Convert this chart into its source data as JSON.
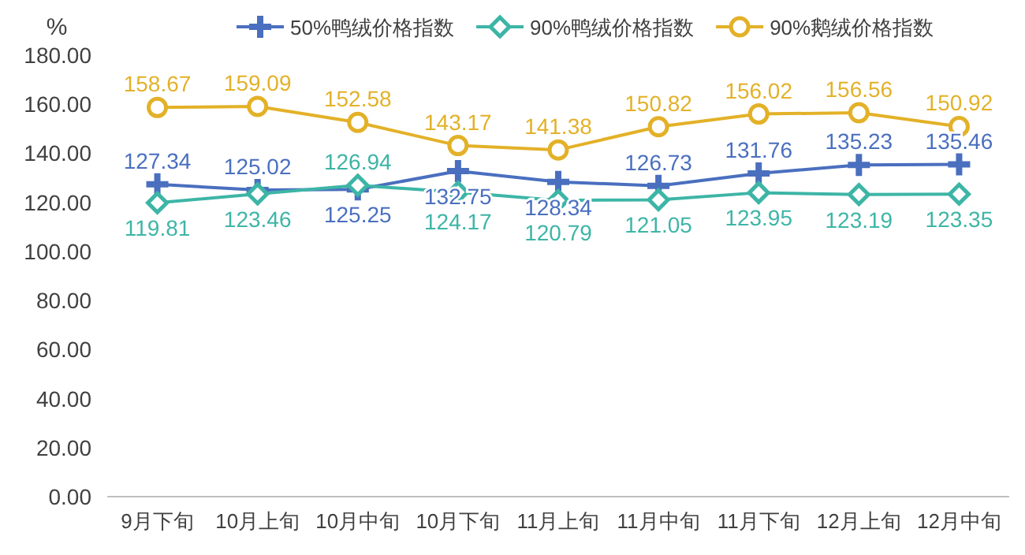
{
  "chart_data": {
    "type": "line",
    "ylabel": "%",
    "categories": [
      "9月下旬",
      "10月上旬",
      "10月中旬",
      "10月下旬",
      "11月上旬",
      "11月中旬",
      "11月下旬",
      "12月上旬",
      "12月中旬"
    ],
    "series": [
      {
        "name": "50%鸭绒价格指数",
        "color": "#4a6fbf",
        "marker": "cross",
        "values": [
          127.34,
          125.02,
          125.25,
          132.75,
          128.34,
          126.73,
          131.76,
          135.23,
          135.46
        ]
      },
      {
        "name": "90%鸭绒价格指数",
        "color": "#3db5a6",
        "marker": "diamond",
        "values": [
          119.81,
          123.46,
          126.94,
          124.17,
          120.79,
          121.05,
          123.95,
          123.19,
          123.35
        ]
      },
      {
        "name": "90%鹅绒价格指数",
        "color": "#e3b128",
        "marker": "circle",
        "values": [
          158.67,
          159.09,
          152.58,
          143.17,
          141.38,
          150.82,
          156.02,
          156.56,
          150.92
        ]
      }
    ],
    "ylim": [
      0,
      180
    ],
    "yticks": [
      {
        "value": 0,
        "label": "0.00"
      },
      {
        "value": 20,
        "label": "20.00"
      },
      {
        "value": 40,
        "label": "40.00"
      },
      {
        "value": 60,
        "label": "60.00"
      },
      {
        "value": 80,
        "label": "80.00"
      },
      {
        "value": 100,
        "label": "100.00"
      },
      {
        "value": 120,
        "label": "120.00"
      },
      {
        "value": 140,
        "label": "140.00"
      },
      {
        "value": 160,
        "label": "160.00"
      },
      {
        "value": 180,
        "label": "180.00"
      }
    ],
    "legend": "top",
    "data_labels": true,
    "line_style": "solid"
  }
}
